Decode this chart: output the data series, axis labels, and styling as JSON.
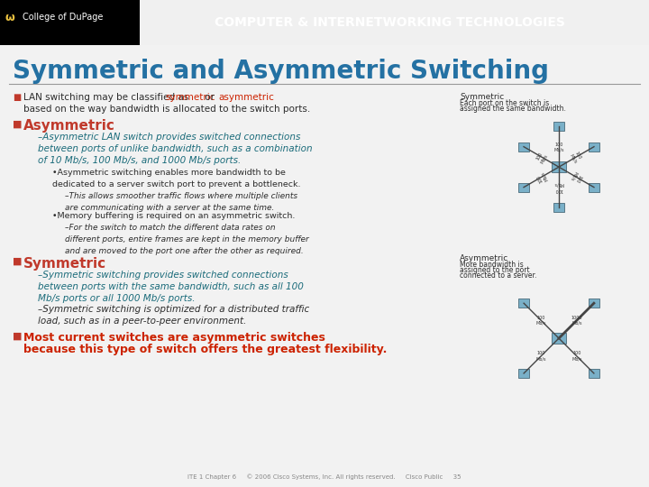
{
  "title": "Symmetric and Asymmetric Switching",
  "header_bg": "#2e6b8a",
  "header_text": "COMPUTER & INTERNETWORKING TECHNOLOGIES",
  "title_color": "#2471a3",
  "slide_bg": "#f0f0f0",
  "bullet_color": "#c0392b",
  "body_text_color": "#1a6b7a",
  "dark_text_color": "#2c2c2c",
  "highlight_red": "#cc2200",
  "footer_text": "ITE 1 Chapter 6     © 2006 Cisco Systems, Inc. All rights reserved.     Cisco Public     35",
  "line1_pre": "LAN switching may be classified as ",
  "line1_sym": "symmetric",
  "line1_mid": " or ",
  "line1_asym": "asymmetric",
  "line2": "based on the way bandwidth is allocated to the switch ports.",
  "h_asymmetric": "Asymmetric",
  "sub1_lines": [
    "–Asymmetric LAN switch provides switched connections",
    "between ports of unlike bandwidth, such as a combination",
    "of 10 Mb/s, 100 Mb/s, and 1000 Mb/s ports."
  ],
  "sub2a_lines": [
    "•Asymmetric switching enables more bandwidth to be",
    "dedicated to a server switch port to prevent a bottleneck."
  ],
  "sub2b_lines": [
    "–This allows smoother traffic flows where multiple clients",
    "are communicating with a server at the same time."
  ],
  "sub3a": "•Memory buffering is required on an asymmetric switch.",
  "sub3b_lines": [
    "–For the switch to match the different data rates on",
    "different ports, entire frames are kept in the memory buffer",
    "and are moved to the port one after the other as required."
  ],
  "h_symmetric": "Symmetric",
  "sym1_lines": [
    "–Symmetric switching provides switched connections",
    "between ports with the same bandwidth, such as all 100",
    "Mb/s ports or all 1000 Mb/s ports."
  ],
  "sym2_lines": [
    "–Symmetric switching is optimized for a distributed traffic",
    "load, such as in a peer-to-peer environment."
  ],
  "final_lines": [
    "Most current switches are asymmetric switches",
    "because this type of switch offers the greatest flexibility."
  ]
}
